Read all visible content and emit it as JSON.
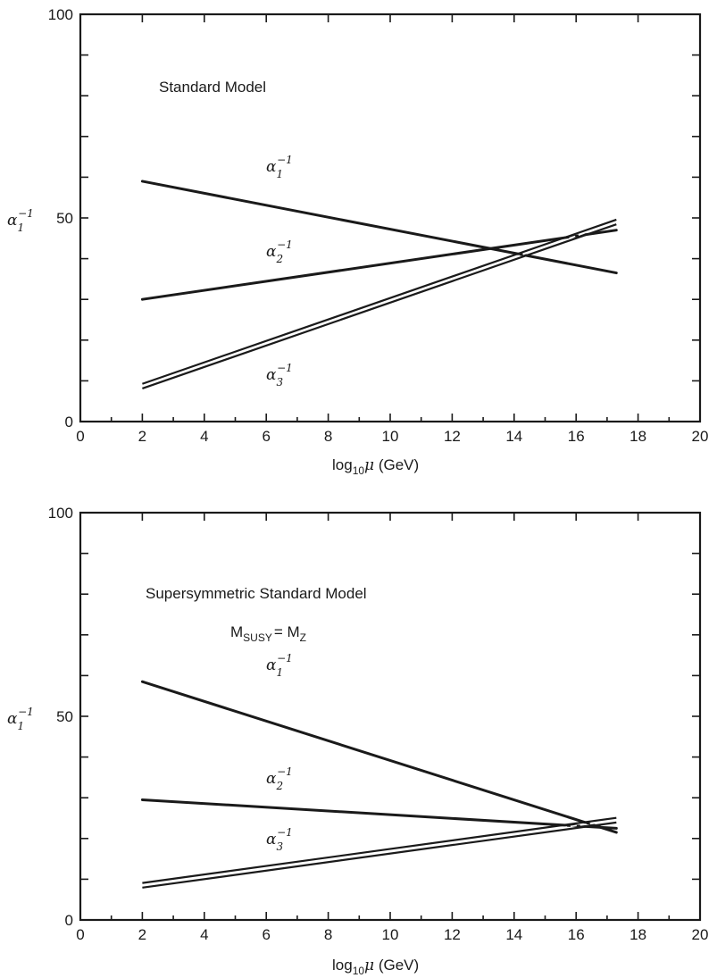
{
  "chart_data": [
    {
      "type": "line",
      "xlabel": "log10μ (GeV)",
      "ylabel": "α1−1",
      "xlim": [
        0,
        20
      ],
      "ylim": [
        0,
        100
      ],
      "xticks": [
        "0",
        "2",
        "4",
        "6",
        "8",
        "10",
        "12",
        "14",
        "16",
        "18",
        "20"
      ],
      "yticks": [
        "0",
        "50",
        "100"
      ],
      "annotations": [
        {
          "text": "Standard Model",
          "x": 2.5,
          "y": 82
        }
      ],
      "series": [
        {
          "name": "α1−1",
          "label_at": {
            "x": 6.1,
            "y": 61
          },
          "x": [
            2,
            17.3
          ],
          "y": [
            59,
            36.5
          ]
        },
        {
          "name": "α2−1",
          "label_at": {
            "x": 6.1,
            "y": 40
          },
          "x": [
            2,
            17.3
          ],
          "y": [
            30,
            47
          ]
        },
        {
          "name": "α3−1",
          "label_at": {
            "x": 6.1,
            "y": 10
          },
          "band": true,
          "x": [
            2,
            17.3
          ],
          "y": [
            8.7,
            49
          ]
        }
      ]
    },
    {
      "type": "line",
      "xlabel": "log10μ (GeV)",
      "ylabel": "α1−1",
      "xlim": [
        0,
        20
      ],
      "ylim": [
        0,
        100
      ],
      "xticks": [
        "0",
        "2",
        "4",
        "6",
        "8",
        "10",
        "12",
        "14",
        "16",
        "18",
        "20"
      ],
      "yticks": [
        "0",
        "50",
        "100"
      ],
      "annotations": [
        {
          "text": "Supersymmetric Standard Model",
          "x": 2.1,
          "y": 72
        },
        {
          "text": "M_SUSY = M_Z",
          "x": 3.7,
          "y": 65
        }
      ],
      "series": [
        {
          "name": "α1−1",
          "label_at": {
            "x": 6.1,
            "y": 61
          },
          "x": [
            2,
            17.3
          ],
          "y": [
            58.5,
            21.5
          ]
        },
        {
          "name": "α2−1",
          "label_at": {
            "x": 6.1,
            "y": 33
          },
          "x": [
            2,
            17.3
          ],
          "y": [
            29.5,
            22.5
          ]
        },
        {
          "name": "α3−1",
          "label_at": {
            "x": 6.1,
            "y": 18
          },
          "band": true,
          "x": [
            2,
            17.3
          ],
          "y": [
            8.5,
            24.5
          ]
        }
      ]
    }
  ],
  "top": {
    "annotation": "Standard Model"
  },
  "bottom": {
    "annotation": "Supersymmetric Standard Model",
    "msusy_main": "M",
    "msusy_sub1": "SUSY",
    "msusy_eq": "= M",
    "msusy_sub2": "Z"
  },
  "labels": {
    "alpha": "α",
    "inv": "−1",
    "s1": "1",
    "s2": "2",
    "s3": "3",
    "xaxis_log": "log",
    "xaxis_sub": "10",
    "xaxis_mu": "μ",
    "xaxis_unit": " (GeV)"
  }
}
